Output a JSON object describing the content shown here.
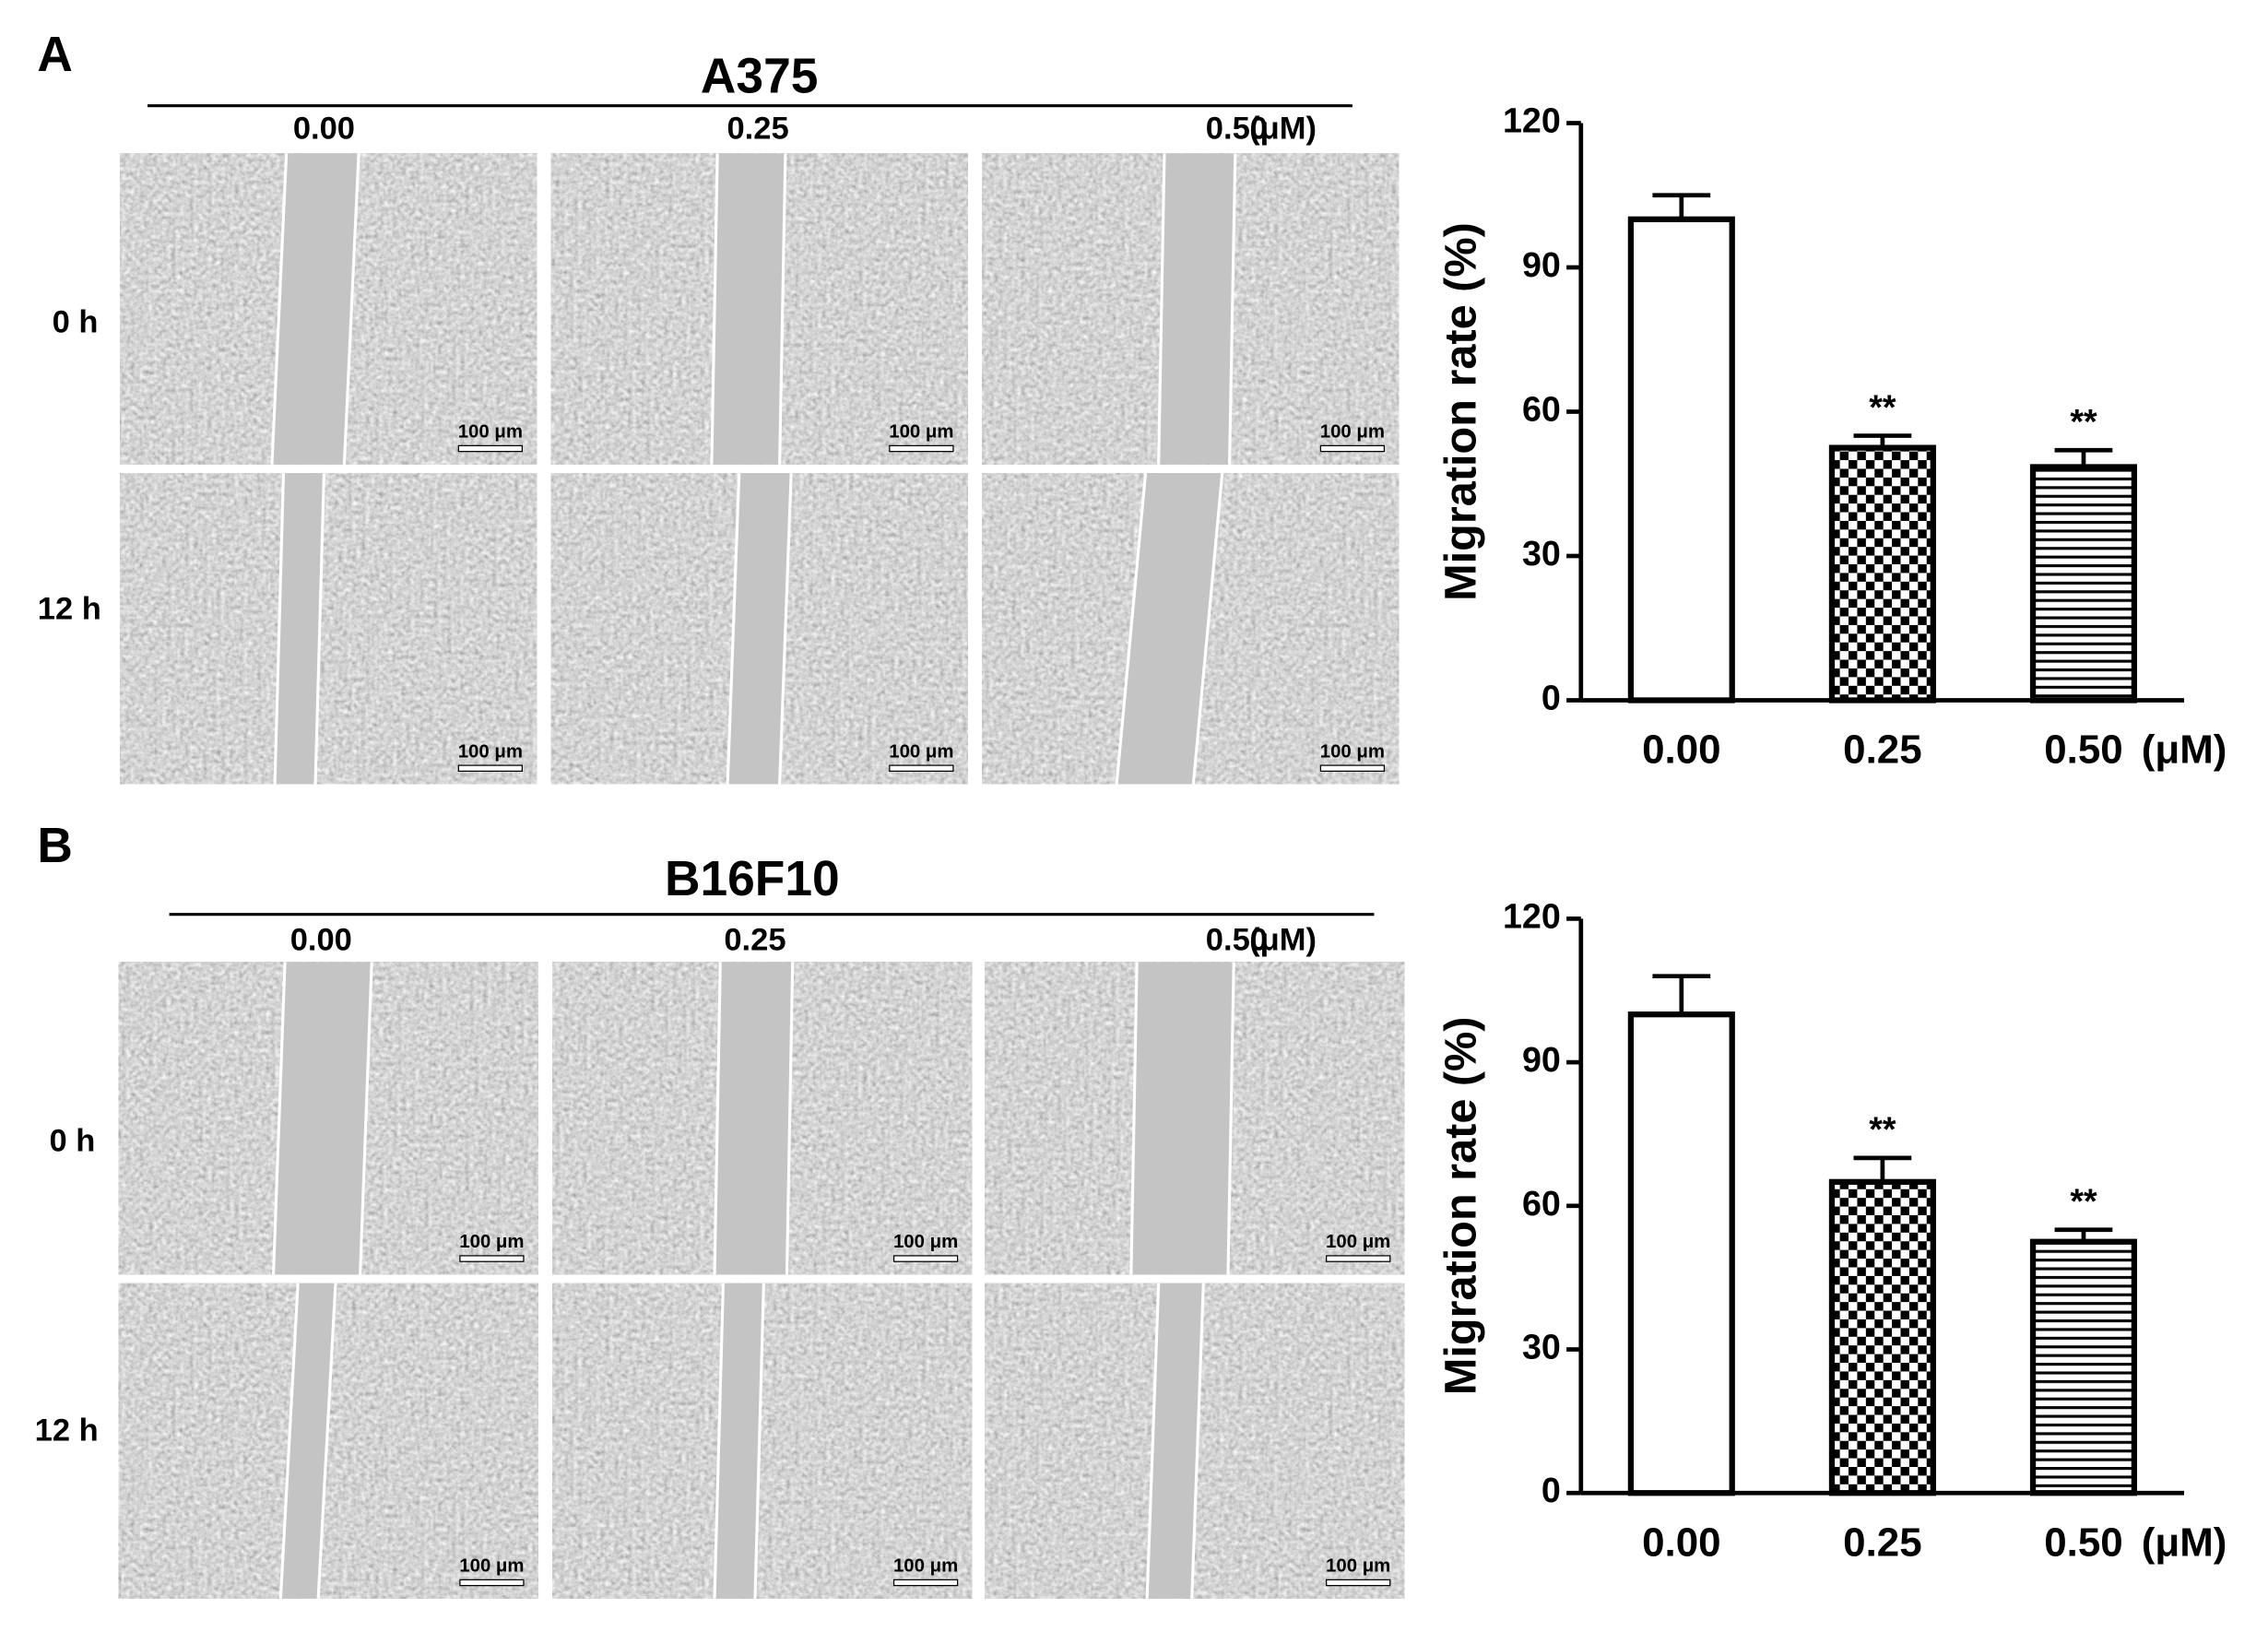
{
  "panels": [
    {
      "letter": "A",
      "cell_line": "A375",
      "doses": [
        "0.00",
        "0.25",
        "0.50"
      ],
      "unit": "(μM)",
      "times": [
        "0 h",
        "12 h"
      ],
      "scale_bar": "100 μm"
    },
    {
      "letter": "B",
      "cell_line": "B16F10",
      "doses": [
        "0.00",
        "0.25",
        "0.50"
      ],
      "unit": "(μM)",
      "times": [
        "0 h",
        "12 h"
      ],
      "scale_bar": "100 μm"
    }
  ],
  "chart_data": [
    {
      "type": "bar",
      "y_label": "Migration rate (%)",
      "categories": [
        "0.00",
        "0.25",
        "0.50"
      ],
      "x_unit": "(μM)",
      "values": [
        100,
        52.5,
        48.5
      ],
      "errors": [
        5,
        2.5,
        3.5
      ],
      "significance": [
        null,
        "**",
        "**"
      ],
      "patterns": [
        "white",
        "checker",
        "hlines"
      ],
      "color": "#000000",
      "ylim": [
        0,
        120
      ],
      "yticks": [
        0,
        30,
        60,
        90,
        120
      ],
      "grid": false
    },
    {
      "type": "bar",
      "y_label": "Migration rate (%)",
      "categories": [
        "0.00",
        "0.25",
        "0.50"
      ],
      "x_unit": "(μM)",
      "values": [
        100,
        65,
        52.5
      ],
      "errors": [
        8,
        5,
        2.5
      ],
      "significance": [
        null,
        "**",
        "**"
      ],
      "patterns": [
        "white",
        "checker",
        "hlines"
      ],
      "color": "#000000",
      "ylim": [
        0,
        120
      ],
      "yticks": [
        0,
        30,
        60,
        90,
        120
      ],
      "grid": false
    }
  ]
}
